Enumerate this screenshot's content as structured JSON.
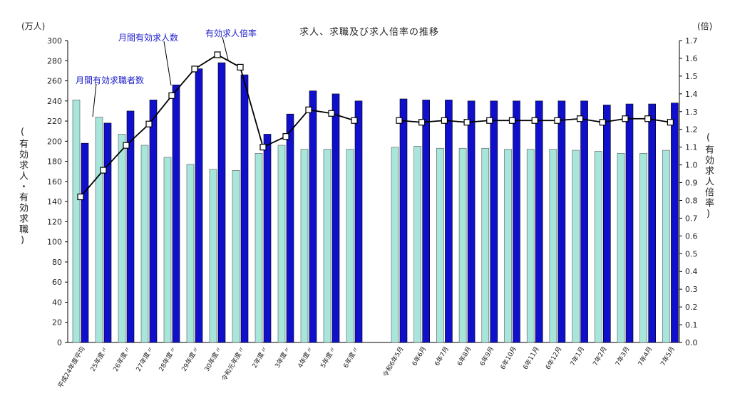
{
  "chart_data": {
    "type": "bar+line",
    "title": "求人、求職及び求人倍率の推移",
    "left_axis": {
      "unit": "(万人)",
      "label": "(有効求人・有効求職)",
      "ylim": [
        0,
        300
      ],
      "ticks": [
        0,
        20,
        40,
        60,
        80,
        100,
        120,
        140,
        160,
        180,
        200,
        220,
        240,
        260,
        280,
        300
      ]
    },
    "right_axis": {
      "unit": "(倍)",
      "label": "(有効求人倍率)",
      "ylim": [
        0.0,
        1.7
      ],
      "ticks": [
        "0.0",
        "0.1",
        "0.2",
        "0.3",
        "0.4",
        "0.5",
        "0.6",
        "0.7",
        "0.8",
        "0.9",
        "1.0",
        "1.1",
        "1.2",
        "1.3",
        "1.4",
        "1.5",
        "1.6",
        "1.7"
      ]
    },
    "categories": [
      "平成24年度平均",
      "25年度〃",
      "26年度〃",
      "27年度〃",
      "28年度〃",
      "29年度〃",
      "30年度〃",
      "令和元年度〃",
      "2年度〃",
      "3年度〃",
      "4年度〃",
      "5年度〃",
      "6年度〃",
      "令和6年5月",
      "6年6月",
      "6年7月",
      "6年8月",
      "6年9月",
      "6年10月",
      "6年11月",
      "6年12月",
      "7年1月",
      "7年2月",
      "7年3月",
      "7年4月",
      "7年5月"
    ],
    "series": [
      {
        "name": "月間有効求職者数",
        "kind": "bar",
        "axis": "left",
        "color": "#a8e6dc",
        "values": [
          241,
          224,
          207,
          196,
          184,
          177,
          172,
          171,
          188,
          196,
          192,
          192,
          192,
          194,
          195,
          193,
          193,
          193,
          192,
          192,
          192,
          191,
          190,
          188,
          188,
          191
        ]
      },
      {
        "name": "月間有効求人数",
        "kind": "bar",
        "axis": "left",
        "color": "#1010cc",
        "values": [
          198,
          218,
          230,
          241,
          256,
          272,
          278,
          266,
          207,
          227,
          250,
          247,
          240,
          242,
          241,
          241,
          240,
          240,
          240,
          240,
          240,
          240,
          236,
          237,
          237,
          238
        ]
      },
      {
        "name": "有効求人倍率",
        "kind": "line",
        "axis": "right",
        "color": "#000000",
        "values": [
          0.82,
          0.97,
          1.11,
          1.23,
          1.39,
          1.54,
          1.62,
          1.55,
          1.1,
          1.16,
          1.31,
          1.29,
          1.25,
          1.25,
          1.24,
          1.25,
          1.24,
          1.25,
          1.25,
          1.25,
          1.25,
          1.26,
          1.24,
          1.26,
          1.26,
          1.24
        ]
      }
    ],
    "segments": [
      [
        0,
        12
      ],
      [
        13,
        25
      ]
    ],
    "grid": false,
    "legend": "callouts"
  }
}
